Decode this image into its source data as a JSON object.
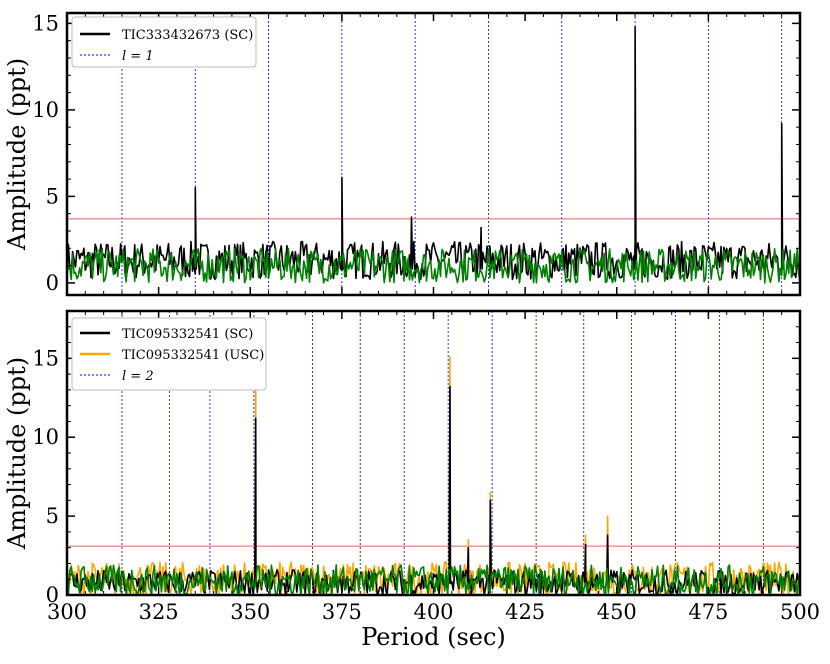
{
  "chart_data": [
    {
      "type": "line",
      "ylabel": "Amplitude (ppt)",
      "xlim": [
        300,
        500
      ],
      "ylim": [
        -0.7,
        15.6
      ],
      "yticks": [
        0,
        5,
        10,
        15
      ],
      "threshold": 3.7,
      "mode_lines_x": [
        315,
        335,
        355,
        375,
        395,
        415,
        435,
        455,
        475,
        495
      ],
      "legend": {
        "location": "top-left",
        "entries": [
          "TIC333432673 (SC)",
          "l = 1"
        ]
      },
      "series": [
        {
          "name": "TIC333432673 (SC)",
          "color": "#000000",
          "baseline": 1.3,
          "noise": 1.1,
          "peaks": [
            [
              335,
              5.5
            ],
            [
              375,
              6.1
            ],
            [
              394,
              3.8
            ],
            [
              413,
              3.2
            ],
            [
              455,
              14.8
            ],
            [
              495,
              9.2
            ]
          ]
        },
        {
          "name": "",
          "color": "#008000",
          "baseline": 1.0,
          "noise": 1.0,
          "peaks": []
        }
      ]
    },
    {
      "type": "line",
      "xlabel": "Period (sec)",
      "ylabel": "Amplitude (ppt)",
      "xlim": [
        300,
        500
      ],
      "ylim": [
        0,
        18
      ],
      "xticks": [
        300,
        325,
        350,
        375,
        400,
        425,
        450,
        475,
        500
      ],
      "yticks": [
        0,
        5,
        10,
        15
      ],
      "threshold": 3.1,
      "mode_lines_x": [
        315,
        328,
        339,
        351,
        367,
        380,
        392,
        404,
        416,
        428,
        441,
        454,
        466,
        478,
        490
      ],
      "legend": {
        "location": "top-left",
        "entries": [
          "TIC095332541 (SC)",
          "TIC095332541 (USC)",
          "l = 2"
        ]
      },
      "series": [
        {
          "name": "TIC095332541 (USC)",
          "color": "#FFA500",
          "baseline": 1.0,
          "noise": 1.1,
          "peaks": [
            [
              351.5,
              13.5
            ],
            [
              404.5,
              15.1
            ],
            [
              409.5,
              3.5
            ],
            [
              415.5,
              6.5
            ],
            [
              441.5,
              3.8
            ],
            [
              447.5,
              5.0
            ]
          ]
        },
        {
          "name": "TIC095332541 (SC)",
          "color": "#000000",
          "baseline": 0.8,
          "noise": 0.8,
          "peaks": [
            [
              351.5,
              11.2
            ],
            [
              404.5,
              13.2
            ],
            [
              409.5,
              3.0
            ],
            [
              415.5,
              6.0
            ],
            [
              441.5,
              3.2
            ],
            [
              447.5,
              3.8
            ]
          ]
        },
        {
          "name": "",
          "color": "#008000",
          "baseline": 0.9,
          "noise": 1.0,
          "peaks": []
        }
      ]
    }
  ],
  "colors": {
    "threshold": "#E06060",
    "mode_line": "#0000FF"
  }
}
